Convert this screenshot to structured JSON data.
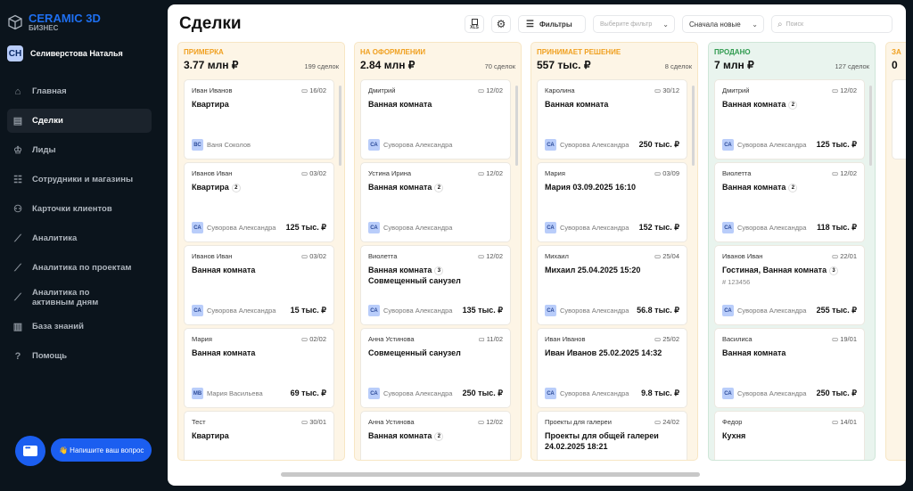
{
  "app": {
    "brand": "CERAMIC 3D",
    "brand_sub": "БИЗНЕС",
    "user_initials": "СН",
    "user_name": "Селиверстова Наталья"
  },
  "sidebar": {
    "items": [
      {
        "label": "Главная",
        "icon": "home-icon"
      },
      {
        "label": "Сделки",
        "icon": "briefcase-icon",
        "active": true
      },
      {
        "label": "Лиды",
        "icon": "crown-icon"
      },
      {
        "label": "Сотрудники и магазины",
        "icon": "staff-icon"
      },
      {
        "label": "Карточки клиентов",
        "icon": "users-icon"
      },
      {
        "label": "Аналитика",
        "icon": "chart-icon"
      },
      {
        "label": "Аналитика по проектам",
        "icon": "chart-icon"
      },
      {
        "label": "Аналитика по активным дням",
        "icon": "chart-icon"
      },
      {
        "label": "База знаний",
        "icon": "book-icon"
      },
      {
        "label": "Помощь",
        "icon": "help-icon"
      }
    ]
  },
  "chat": {
    "ask_label": "👋 Напишите ваш вопрос"
  },
  "header": {
    "title": "Сделки",
    "filters_label": "Фильтры",
    "filter_placeholder": "Выберите фильтр",
    "sort_value": "Сначала новые",
    "search_placeholder": "Поиск",
    "xls_label": "XLS"
  },
  "colors": {
    "orange": "#f0a020",
    "green": "#2e9a4e",
    "orange_bg": "#fdf5e6",
    "green_bg": "#e9f4ee"
  },
  "columns": [
    {
      "name": "ПРИМЕРКА",
      "sum": "3.77 млн ₽",
      "count": "199 сделок",
      "tone": "orange",
      "cards": [
        {
          "client": "Иван Иванов",
          "date": "16/02",
          "title": "Квартира",
          "mi": "ВС",
          "manager": "Ваня Соколов"
        },
        {
          "client": "Иванов Иван",
          "date": "03/02",
          "title": "Квартира",
          "badge": "2",
          "mi": "СА",
          "manager": "Суворова Александра",
          "amount": "125 тыс. ₽"
        },
        {
          "client": "Иванов Иван",
          "date": "03/02",
          "title": "Ванная комната",
          "mi": "СА",
          "manager": "Суворова Александра",
          "amount": "15 тыс. ₽"
        },
        {
          "client": "Мария",
          "date": "02/02",
          "title": "Ванная комната",
          "mi": "МВ",
          "manager": "Мария Васильева",
          "amount": "69 тыс. ₽"
        },
        {
          "client": "Тест",
          "date": "30/01",
          "title": "Квартира"
        }
      ]
    },
    {
      "name": "НА ОФОРМЛЕНИИ",
      "sum": "2.84 млн ₽",
      "count": "70 сделок",
      "tone": "orange",
      "cards": [
        {
          "client": "Дмитрий",
          "date": "12/02",
          "title": "Ванная комната",
          "mi": "СА",
          "manager": "Суворова Александра"
        },
        {
          "client": "Устина Ирина",
          "date": "12/02",
          "title": "Ванная комната",
          "badge": "2",
          "mi": "СА",
          "manager": "Суворова Александра"
        },
        {
          "client": "Виолетта",
          "date": "12/02",
          "title": "Ванная комната",
          "badge": "3",
          "title2": "Совмещенный санузел",
          "mi": "СА",
          "manager": "Суворова Александра",
          "amount": "135 тыс. ₽"
        },
        {
          "client": "Анна Устинова",
          "date": "11/02",
          "title": "Совмещенный санузел",
          "mi": "СА",
          "manager": "Суворова Александра",
          "amount": "250 тыс. ₽"
        },
        {
          "client": "Анна Устинова",
          "date": "12/02",
          "title": "Ванная комната",
          "badge": "2"
        }
      ]
    },
    {
      "name": "ПРИНИМАЕТ РЕШЕНИЕ",
      "sum": "557 тыс. ₽",
      "count": "8 сделок",
      "tone": "orange",
      "cards": [
        {
          "client": "Каролина",
          "date": "30/12",
          "title": "Ванная комната",
          "mi": "СА",
          "manager": "Суворова Александра",
          "amount": "250 тыс. ₽"
        },
        {
          "client": "Мария",
          "date": "03/09",
          "title": "Мария 03.09.2025 16:10",
          "mi": "СА",
          "manager": "Суворова Александра",
          "amount": "152 тыс. ₽"
        },
        {
          "client": "Михаил",
          "date": "25/04",
          "title": "Михаил 25.04.2025 15:20",
          "mi": "СА",
          "manager": "Суворова Александра",
          "amount": "56.8 тыс. ₽"
        },
        {
          "client": "Иван Иванов",
          "date": "25/02",
          "title": "Иван Иванов 25.02.2025 14:32",
          "mi": "СА",
          "manager": "Суворова Александра",
          "amount": "9.8 тыс. ₽"
        },
        {
          "client": "Проекты для галереи",
          "date": "24/02",
          "title": "Проекты для общей галереи 24.02.2025 18:21"
        }
      ]
    },
    {
      "name": "ПРОДАНО",
      "sum": "7 млн ₽",
      "count": "127 сделок",
      "tone": "green",
      "cards": [
        {
          "client": "Дмитрий",
          "date": "12/02",
          "title": "Ванная комната",
          "badge": "2",
          "mi": "СА",
          "manager": "Суворова Александра",
          "amount": "125 тыс. ₽"
        },
        {
          "client": "Виолетта",
          "date": "12/02",
          "title": "Ванная комната",
          "badge": "2",
          "mi": "СА",
          "manager": "Суворова Александра",
          "amount": "118 тыс. ₽"
        },
        {
          "client": "Иванов Иван",
          "date": "22/01",
          "title": "Гостиная, Ванная комната",
          "badge": "3",
          "sub": "# 123456",
          "mi": "СА",
          "manager": "Суворова Александра",
          "amount": "255 тыс. ₽"
        },
        {
          "client": "Василиса",
          "date": "19/01",
          "title": "Ванная комната",
          "mi": "СА",
          "manager": "Суворова Александра",
          "amount": "250 тыс. ₽"
        },
        {
          "client": "Федор",
          "date": "14/01",
          "title": "Кухня"
        }
      ]
    },
    {
      "name": "ЗА",
      "sum": "0",
      "count": "",
      "tone": "orange",
      "cards": [
        {
          "client": "",
          "date": "",
          "title": ""
        }
      ]
    }
  ]
}
